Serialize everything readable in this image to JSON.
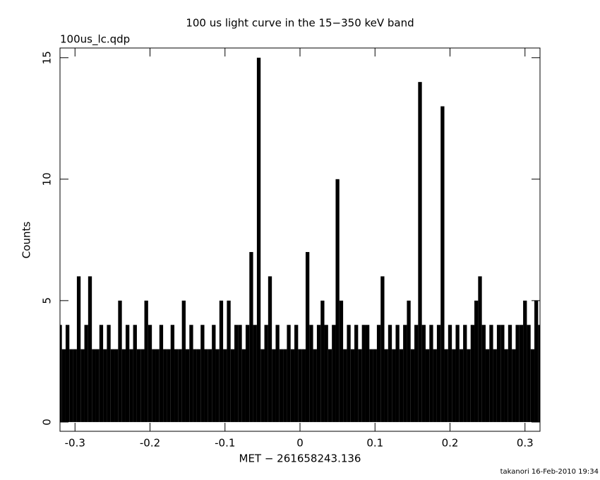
{
  "chart_data": {
    "type": "bar",
    "title": "100 us light curve in the 15−350 keV band",
    "subtitle": "100us_lc.qdp",
    "x_label": "MET − 261658243.136",
    "y_label": "Counts",
    "footer": "takanori 16-Feb-2010 19:34",
    "color": "#000000",
    "xlim": [
      -0.32,
      0.32
    ],
    "xticks": [
      -0.3,
      -0.2,
      -0.1,
      0,
      0.1,
      0.2,
      0.3
    ],
    "ylim": [
      -0.38,
      15.4
    ],
    "yticks": [
      0,
      5,
      10,
      15
    ],
    "x": [
      -0.32,
      -0.315,
      -0.31,
      -0.305,
      -0.3,
      -0.295,
      -0.29,
      -0.285,
      -0.28,
      -0.275,
      -0.27,
      -0.265,
      -0.26,
      -0.255,
      -0.25,
      -0.245,
      -0.24,
      -0.235,
      -0.23,
      -0.225,
      -0.22,
      -0.215,
      -0.21,
      -0.205,
      -0.2,
      -0.195,
      -0.19,
      -0.185,
      -0.18,
      -0.175,
      -0.17,
      -0.165,
      -0.16,
      -0.155,
      -0.15,
      -0.145,
      -0.14,
      -0.135,
      -0.13,
      -0.125,
      -0.12,
      -0.115,
      -0.11,
      -0.105,
      -0.1,
      -0.095,
      -0.09,
      -0.085,
      -0.08,
      -0.075,
      -0.07,
      -0.065,
      -0.06,
      -0.055,
      -0.05,
      -0.045,
      -0.04,
      -0.035,
      -0.03,
      -0.025,
      -0.02,
      -0.015,
      -0.01,
      -0.005,
      0,
      0.005,
      0.01,
      0.015,
      0.02,
      0.025,
      0.03,
      0.035,
      0.04,
      0.045,
      0.05,
      0.055,
      0.06,
      0.065,
      0.07,
      0.075,
      0.08,
      0.085,
      0.09,
      0.095,
      0.1,
      0.105,
      0.11,
      0.115,
      0.12,
      0.125,
      0.13,
      0.135,
      0.14,
      0.145,
      0.15,
      0.155,
      0.16,
      0.165,
      0.17,
      0.175,
      0.18,
      0.185,
      0.19,
      0.195,
      0.2,
      0.205,
      0.21,
      0.215,
      0.22,
      0.225,
      0.23,
      0.235,
      0.24,
      0.245,
      0.25,
      0.255,
      0.26,
      0.265,
      0.27,
      0.275,
      0.28,
      0.285,
      0.29,
      0.295,
      0.3,
      0.305,
      0.31,
      0.315,
      0.32
    ],
    "values": [
      4,
      3,
      4,
      3,
      3,
      6,
      3,
      4,
      6,
      3,
      3,
      4,
      3,
      4,
      3,
      3,
      5,
      3,
      4,
      3,
      4,
      3,
      3,
      5,
      4,
      3,
      3,
      4,
      3,
      3,
      4,
      3,
      3,
      5,
      3,
      4,
      3,
      3,
      4,
      3,
      3,
      4,
      3,
      5,
      3,
      5,
      3,
      4,
      4,
      3,
      4,
      7,
      4,
      15,
      3,
      4,
      6,
      3,
      4,
      3,
      3,
      4,
      3,
      4,
      3,
      3,
      7,
      4,
      3,
      4,
      5,
      4,
      3,
      4,
      10,
      5,
      3,
      4,
      3,
      4,
      3,
      4,
      4,
      3,
      3,
      4,
      6,
      3,
      4,
      3,
      4,
      3,
      4,
      5,
      3,
      4,
      14,
      4,
      3,
      4,
      3,
      4,
      13,
      3,
      4,
      3,
      4,
      3,
      4,
      3,
      4,
      5,
      6,
      4,
      3,
      4,
      3,
      4,
      4,
      3,
      4,
      3,
      4,
      4,
      5,
      4,
      3,
      5,
      4
    ]
  }
}
